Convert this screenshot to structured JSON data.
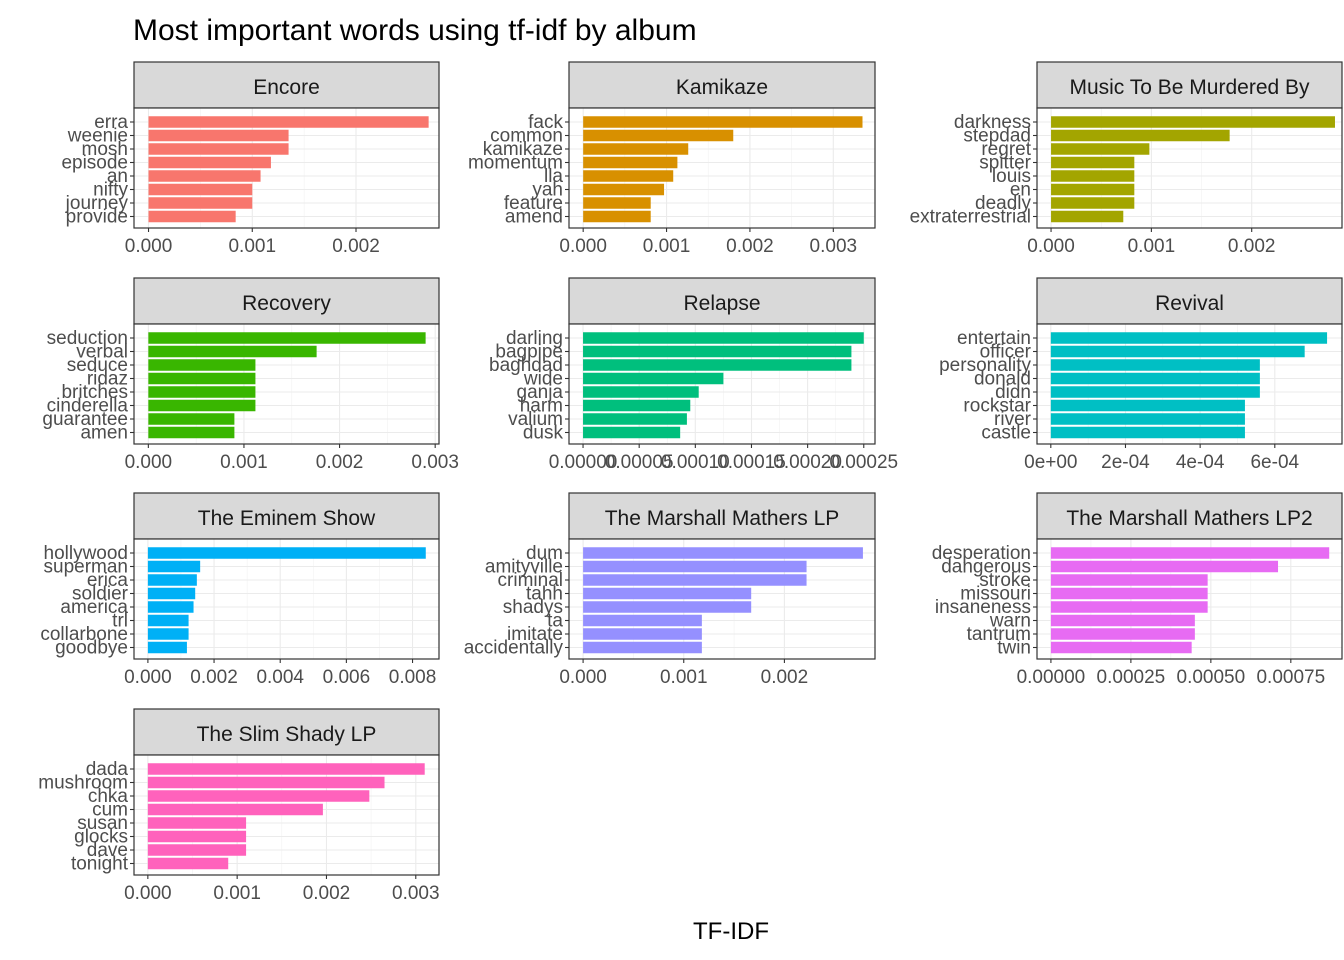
{
  "chart_data": {
    "type": "bar",
    "orientation": "horizontal",
    "title": "Most important words using tf-idf by album",
    "xlabel": "TF-IDF",
    "ylabel": "",
    "grid": true,
    "legend": "none",
    "panels": [
      {
        "album": "Encore",
        "color": "#F8766D",
        "xlim": [
          -0.00014,
          0.0028
        ],
        "ticks": [
          0,
          0.001,
          0.002
        ],
        "tick_labels": [
          "0.000",
          "0.001",
          "0.002"
        ],
        "words": [
          "erra",
          "weenie",
          "mosh",
          "episode",
          "an",
          "nifty",
          "journey",
          "provide"
        ],
        "values": [
          0.0027,
          0.00135,
          0.00135,
          0.00118,
          0.00108,
          0.001,
          0.001,
          0.00084
        ]
      },
      {
        "album": "Kamikaze",
        "color": "#D89000",
        "xlim": [
          -0.00017,
          0.0035
        ],
        "ticks": [
          0,
          0.001,
          0.002,
          0.003
        ],
        "tick_labels": [
          "0.000",
          "0.001",
          "0.002",
          "0.003"
        ],
        "words": [
          "fack",
          "common",
          "kamikaze",
          "momentum",
          "lla",
          "yah",
          "feature",
          "amend"
        ],
        "values": [
          0.00335,
          0.0018,
          0.00126,
          0.00113,
          0.00108,
          0.00097,
          0.00081,
          0.00081
        ]
      },
      {
        "album": "Music To Be Murdered By",
        "color": "#A3A500",
        "xlim": [
          -0.00014,
          0.0029
        ],
        "ticks": [
          0,
          0.001,
          0.002
        ],
        "tick_labels": [
          "0.000",
          "0.001",
          "0.002"
        ],
        "words": [
          "darkness",
          "stepdad",
          "regret",
          "spitter",
          "louis",
          "en",
          "deadly",
          "extraterrestrial"
        ],
        "values": [
          0.00283,
          0.00178,
          0.00098,
          0.00083,
          0.00083,
          0.00083,
          0.00083,
          0.00072
        ]
      },
      {
        "album": "Recovery",
        "color": "#39B600",
        "xlim": [
          -0.00015,
          0.00304
        ],
        "ticks": [
          0,
          0.001,
          0.002,
          0.003
        ],
        "tick_labels": [
          "0.000",
          "0.001",
          "0.002",
          "0.003"
        ],
        "words": [
          "seduction",
          "verbal",
          "seduce",
          "ridaz",
          "britches",
          "cinderella",
          "guarantee",
          "amen"
        ],
        "values": [
          0.0029,
          0.00176,
          0.00112,
          0.00112,
          0.00112,
          0.00112,
          0.0009,
          0.0009
        ]
      },
      {
        "album": "Relapse",
        "color": "#00BF7D",
        "xlim": [
          -1.25e-05,
          0.00026
        ],
        "ticks": [
          0,
          5e-05,
          0.0001,
          0.00015,
          0.0002,
          0.00025
        ],
        "tick_labels": [
          "0.00000",
          "0.00005",
          "0.00010",
          "0.00015",
          "0.00020",
          "0.00025"
        ],
        "words": [
          "darling",
          "bagpipe",
          "baghdad",
          "wide",
          "ganja",
          "harm",
          "valium",
          "dusk"
        ],
        "values": [
          0.00025,
          0.000239,
          0.000239,
          0.000125,
          0.000103,
          9.55e-05,
          9.25e-05,
          8.65e-05
        ]
      },
      {
        "album": "Revival",
        "color": "#00BFC4",
        "xlim": [
          -3.7e-05,
          0.00078
        ],
        "ticks": [
          0,
          0.0002,
          0.0004,
          0.0006
        ],
        "tick_labels": [
          "0e+00",
          "2e-04",
          "4e-04",
          "6e-04"
        ],
        "words": [
          "entertain",
          "officer",
          "personality",
          "donald",
          "didn",
          "rockstar",
          "river",
          "castle"
        ],
        "values": [
          0.00074,
          0.00068,
          0.00056,
          0.00056,
          0.00056,
          0.00052,
          0.00052,
          0.00052
        ]
      },
      {
        "album": "The Eminem Show",
        "color": "#00B0F6",
        "xlim": [
          -0.00042,
          0.0088
        ],
        "ticks": [
          0,
          0.002,
          0.004,
          0.006,
          0.008
        ],
        "tick_labels": [
          "0.000",
          "0.002",
          "0.004",
          "0.006",
          "0.008"
        ],
        "words": [
          "hollywood",
          "superman",
          "erica",
          "soldier",
          "america",
          "trl",
          "collarbone",
          "goodbye"
        ],
        "values": [
          0.0084,
          0.00158,
          0.00148,
          0.00143,
          0.00138,
          0.00123,
          0.00123,
          0.00118
        ]
      },
      {
        "album": "The Marshall Mathers LP",
        "color": "#9590FF",
        "xlim": [
          -0.00014,
          0.0029
        ],
        "ticks": [
          0,
          0.001,
          0.002
        ],
        "tick_labels": [
          "0.000",
          "0.001",
          "0.002"
        ],
        "words": [
          "dum",
          "amityville",
          "criminal",
          "tahh",
          "shadys",
          "ta",
          "imitate",
          "accidentally"
        ],
        "values": [
          0.00278,
          0.00222,
          0.00222,
          0.00167,
          0.00167,
          0.00118,
          0.00118,
          0.00118
        ]
      },
      {
        "album": "The Marshall Mathers LP2",
        "color": "#E76BF3",
        "xlim": [
          -4.35e-05,
          0.00091
        ],
        "ticks": [
          0,
          0.00025,
          0.0005,
          0.00075
        ],
        "tick_labels": [
          "0.00000",
          "0.00025",
          "0.00050",
          "0.00075"
        ],
        "words": [
          "desperation",
          "dangerous",
          "stroke",
          "missouri",
          "insaneness",
          "warn",
          "tantrum",
          "twin"
        ],
        "values": [
          0.00087,
          0.00071,
          0.00049,
          0.00049,
          0.00049,
          0.00045,
          0.00045,
          0.00044
        ]
      },
      {
        "album": "The Slim Shady LP",
        "color": "#FF62BC",
        "xlim": [
          -0.000155,
          0.00326
        ],
        "ticks": [
          0,
          0.001,
          0.002,
          0.003
        ],
        "tick_labels": [
          "0.000",
          "0.001",
          "0.002",
          "0.003"
        ],
        "words": [
          "dada",
          "mushroom",
          "chka",
          "cum",
          "susan",
          "glocks",
          "dave",
          "tonight"
        ],
        "values": [
          0.0031,
          0.00265,
          0.00248,
          0.00196,
          0.0011,
          0.0011,
          0.0011,
          0.0009
        ]
      }
    ]
  }
}
